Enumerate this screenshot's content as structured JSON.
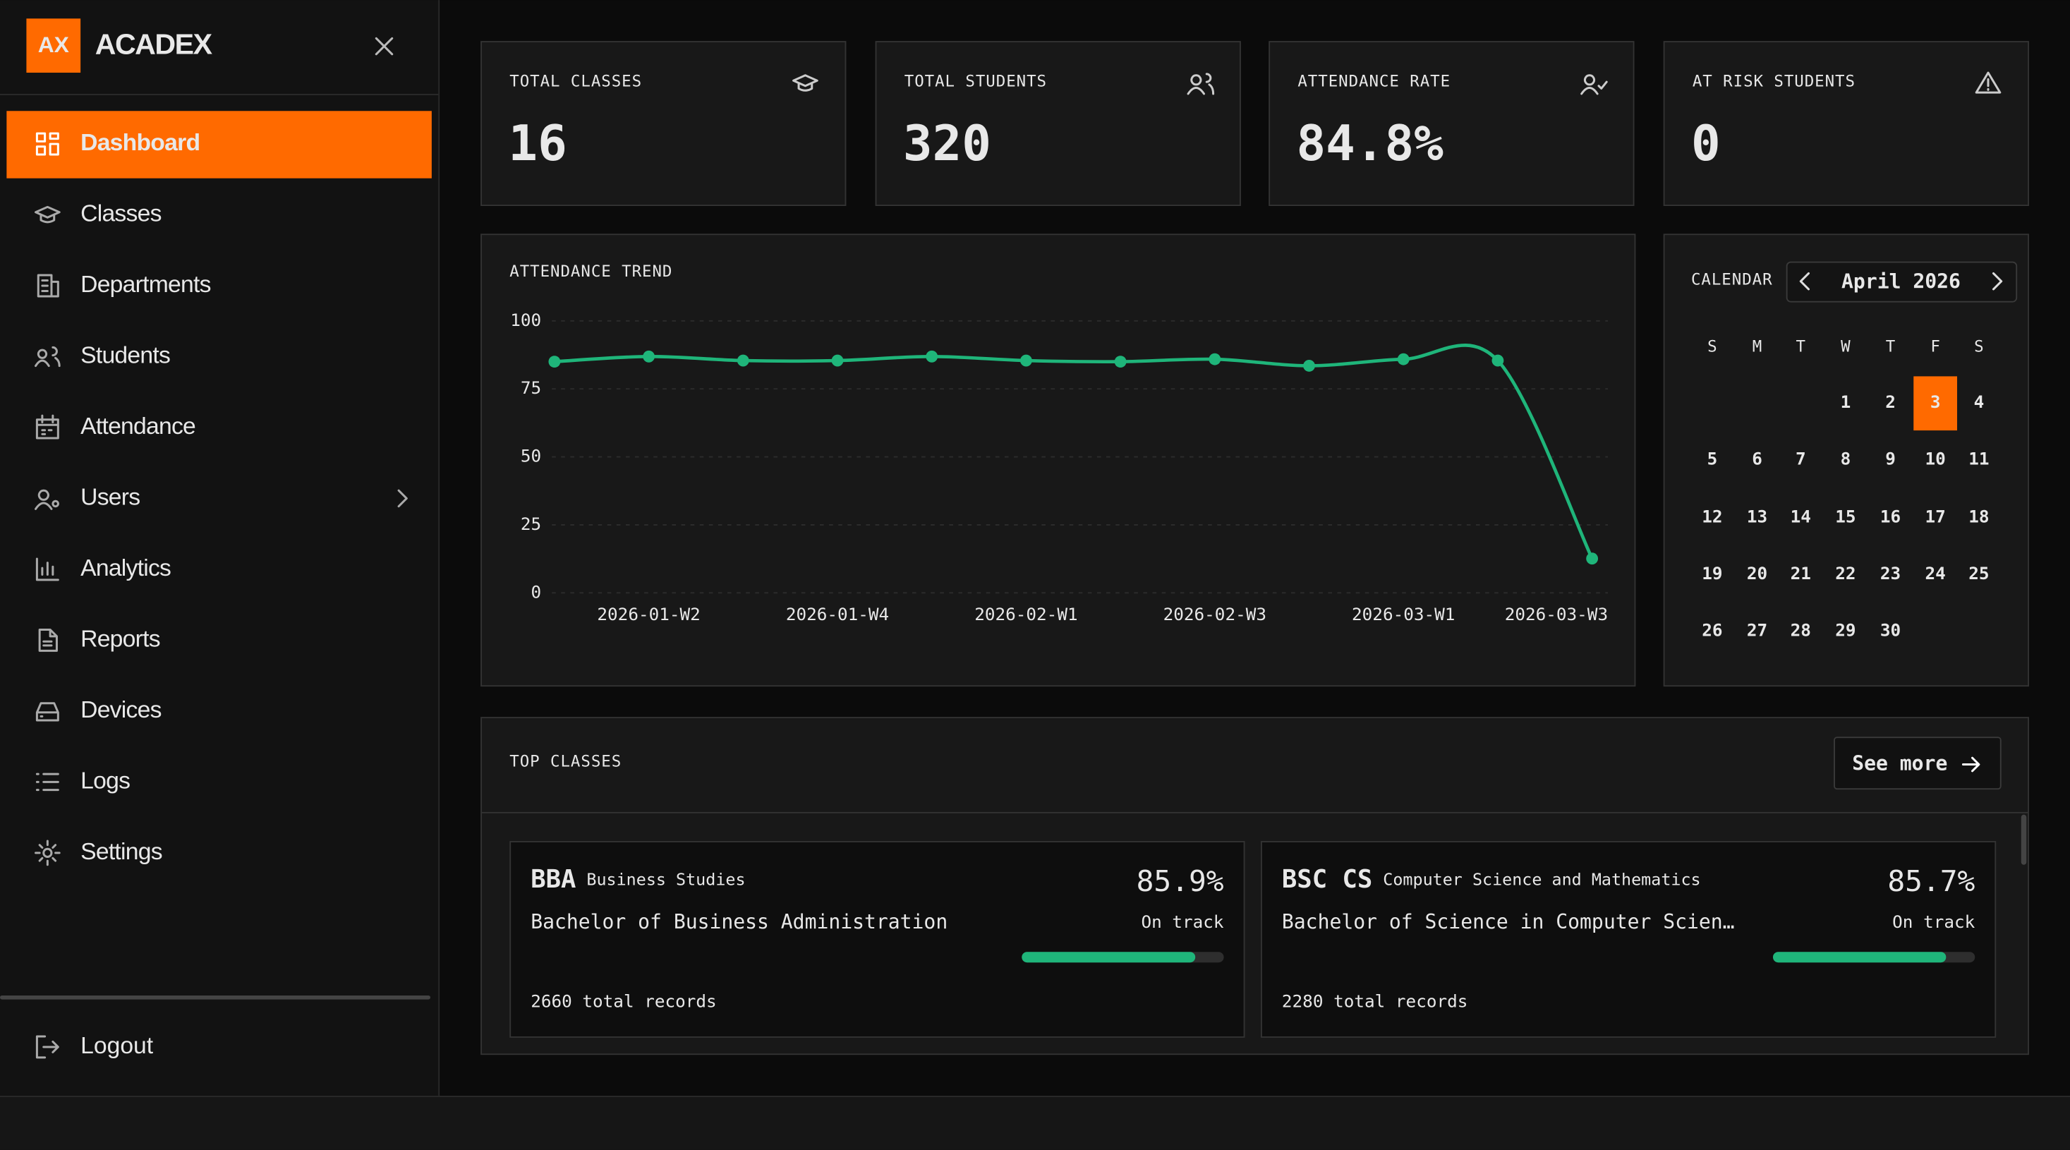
{
  "sidebar": {
    "logo": "AX",
    "brand": "ACADEX",
    "nav": [
      "Dashboard",
      "Classes",
      "Departments",
      "Students",
      "Attendance",
      "Users",
      "Analytics",
      "Reports",
      "Devices",
      "Logs",
      "Settings"
    ],
    "active": 0,
    "logout": "Logout"
  },
  "stats": [
    {
      "label": "TOTAL CLASSES",
      "value": "16",
      "color": "#ffffff"
    },
    {
      "label": "TOTAL STUDENTS",
      "value": "320",
      "color": "#ffffff"
    },
    {
      "label": "ATTENDANCE RATE",
      "value": "84.8%",
      "color": "#1fb57a"
    },
    {
      "label": "AT RISK STUDENTS",
      "value": "0",
      "color": "#8a8a8a"
    }
  ],
  "chart_data": {
    "type": "line",
    "title": "ATTENDANCE TREND",
    "categories": [
      null,
      "2026-01-W2",
      null,
      "2026-01-W4",
      null,
      "2026-02-W1",
      null,
      "2026-02-W3",
      null,
      "2026-03-W1",
      null,
      "2026-03-W3"
    ],
    "values": [
      85.0,
      86.9,
      85.4,
      85.4,
      86.9,
      85.4,
      85.0,
      85.9,
      83.5,
      85.9,
      85.4,
      12.6
    ],
    "color": "#1fb57a",
    "ylim": [
      0,
      100
    ],
    "yticks": [
      0,
      25,
      50,
      75,
      100
    ],
    "grid": true
  },
  "calendar": {
    "title": "CALENDAR",
    "month": "April 2026",
    "weekdays": [
      "S",
      "M",
      "T",
      "W",
      "T",
      "F",
      "S"
    ],
    "weeks": [
      [
        null,
        null,
        null,
        1,
        2,
        3,
        4
      ],
      [
        5,
        6,
        7,
        8,
        9,
        10,
        11
      ],
      [
        12,
        13,
        14,
        15,
        16,
        17,
        18
      ],
      [
        19,
        20,
        21,
        22,
        23,
        24,
        25
      ],
      [
        26,
        27,
        28,
        29,
        30,
        null,
        null
      ]
    ],
    "selected": 3
  },
  "top_classes": {
    "title": "TOP CLASSES",
    "button": "See more",
    "items": [
      {
        "code": "BBA",
        "department": "Business Studies",
        "name": "Bachelor of Business Administration",
        "rate": 85.9,
        "rate_label": "85.9%",
        "status": "On track",
        "records": "2660 total records"
      },
      {
        "code": "BSC CS",
        "department": "Computer Science and Mathematics",
        "name": "Bachelor of Science in Computer Scien…",
        "rate": 85.7,
        "rate_label": "85.7%",
        "status": "On track",
        "records": "2280 total records"
      }
    ]
  }
}
